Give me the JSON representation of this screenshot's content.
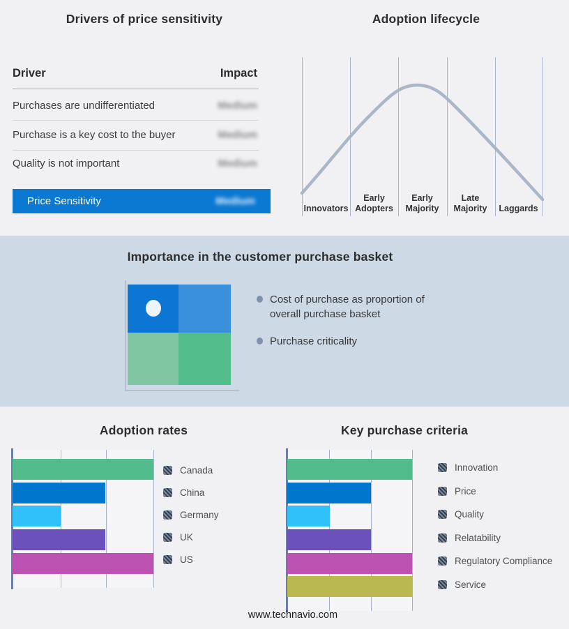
{
  "footer": {
    "url": "www.technavio.com"
  },
  "drivers_panel": {
    "title": "Drivers of price sensitivity",
    "columns": {
      "driver": "Driver",
      "impact": "Impact"
    },
    "rows": [
      {
        "driver": "Purchases are undifferentiated",
        "impact": "Medium"
      },
      {
        "driver": "Purchase is a key cost to the buyer",
        "impact": "Medium"
      },
      {
        "driver": "Quality is not important",
        "impact": "Medium"
      }
    ],
    "highlight_row": {
      "driver": "Price Sensitivity",
      "impact": "Medium"
    },
    "highlight_color": "#0b78d1"
  },
  "lifecycle_panel": {
    "title": "Adoption lifecycle",
    "stages": [
      "Innovators",
      "Early Adopters",
      "Early Majority",
      "Late Majority",
      "Laggards"
    ],
    "curve_color": "#a9b7c9"
  },
  "basket_panel": {
    "title": "Importance in the customer purchase basket",
    "bullets": [
      "Cost of purchase as proportion of overall purchase basket",
      "Purchase criticality"
    ],
    "quadrant_colors": {
      "top_left": "#0d76d4",
      "top_right": "#3a90da",
      "bottom_left": "#7ec7a2",
      "bottom_right": "#53bd8c"
    },
    "band_background": "#cdd9e5"
  },
  "chart_data": [
    {
      "type": "bar",
      "orientation": "horizontal",
      "title": "Adoption rates",
      "categories": [
        "Canada",
        "China",
        "Germany",
        "UK",
        "US"
      ],
      "values_pct": [
        100,
        66,
        34,
        66,
        100
      ],
      "colors": [
        "#52bc8c",
        "#0077cd",
        "#2fc1f8",
        "#6a51bc",
        "#bc52b1"
      ],
      "xlim_pct": [
        0,
        100
      ],
      "grid": true,
      "legend_position": "right"
    },
    {
      "type": "bar",
      "orientation": "horizontal",
      "title": "Key purchase criteria",
      "categories": [
        "Innovation",
        "Price",
        "Quality",
        "Relatability",
        "Regulatory Compliance",
        "Service"
      ],
      "values_pct": [
        100,
        67,
        34,
        67,
        100,
        100
      ],
      "colors": [
        "#52bc8c",
        "#0077cd",
        "#2fc1f8",
        "#6a51bc",
        "#bc52b1",
        "#b9b94f"
      ],
      "xlim_pct": [
        0,
        100
      ],
      "grid": true,
      "legend_position": "right"
    },
    {
      "type": "line",
      "title": "Adoption lifecycle",
      "categories": [
        "Innovators",
        "Early Adopters",
        "Early Majority",
        "Late Majority",
        "Laggards"
      ],
      "shape": "bell-curve",
      "peak_at": "Early Majority",
      "line_color": "#a9b7c9"
    }
  ]
}
